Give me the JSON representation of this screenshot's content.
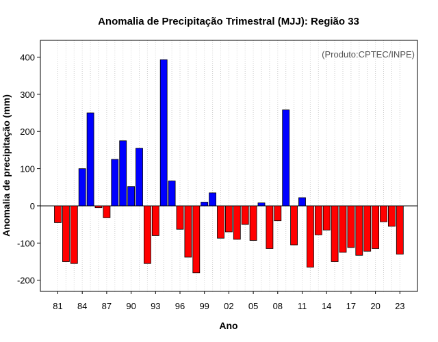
{
  "chart_data": {
    "type": "bar",
    "title": "Anomalia de Precipitação Trimestral (MJJ): Região 33",
    "annotation": "(Produto:CPTEC/INPE)",
    "xlabel": "Ano",
    "ylabel": "Anomalia de precipitação (mm)",
    "ylim": [
      -230,
      445
    ],
    "yticks": [
      -200,
      -100,
      0,
      100,
      200,
      300,
      400
    ],
    "positive_color": "#0000ff",
    "negative_color": "#ff0000",
    "categories": [
      "81",
      "82",
      "83",
      "84",
      "85",
      "86",
      "87",
      "88",
      "89",
      "90",
      "91",
      "92",
      "93",
      "94",
      "95",
      "96",
      "97",
      "98",
      "99",
      "00",
      "01",
      "02",
      "03",
      "04",
      "05",
      "06",
      "07",
      "08",
      "09",
      "10",
      "11",
      "12",
      "13",
      "14",
      "15",
      "16",
      "17",
      "18",
      "19",
      "20",
      "21",
      "22",
      "23"
    ],
    "tick_labels": [
      "81",
      "84",
      "87",
      "90",
      "93",
      "96",
      "99",
      "02",
      "05",
      "08",
      "11",
      "14",
      "17",
      "20",
      "23"
    ],
    "values": [
      -45,
      -150,
      -155,
      100,
      250,
      -5,
      -32,
      125,
      175,
      52,
      155,
      -155,
      -80,
      393,
      67,
      -63,
      -138,
      -180,
      10,
      35,
      -87,
      -70,
      -90,
      -50,
      -93,
      8,
      -115,
      -40,
      258,
      -105,
      22,
      -165,
      -78,
      -65,
      -150,
      -125,
      -112,
      -133,
      -122,
      -115,
      -43,
      -55,
      -130
    ]
  }
}
